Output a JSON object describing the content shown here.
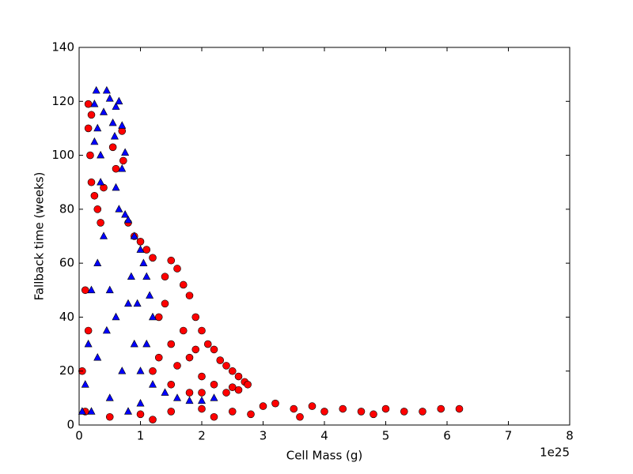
{
  "chart_data": {
    "type": "scatter",
    "xlabel": "Cell Mass (g)",
    "ylabel": "Fallback time (weeks)",
    "x_offset_label": "1e25",
    "xlim": [
      0,
      8
    ],
    "ylim": [
      0,
      140
    ],
    "xticks": [
      0,
      1,
      2,
      3,
      4,
      5,
      6,
      7,
      8
    ],
    "yticks": [
      0,
      20,
      40,
      60,
      80,
      100,
      120,
      140
    ],
    "series": [
      {
        "color": "#ff0000",
        "marker": "circle",
        "x": [
          0.5,
          1,
          1.5,
          2,
          2.5,
          3,
          3.2,
          3.5,
          3.8,
          4,
          4.3,
          4.6,
          5,
          5.3,
          5.6,
          5.9,
          6.2,
          2.8,
          3.6,
          4.8,
          1.2,
          2.2,
          1.2,
          1.3,
          1.4,
          1.5,
          1.6,
          1.7,
          1.8,
          1.9,
          2.0,
          2.1,
          2.2,
          2.3,
          2.4,
          2.5,
          2.6,
          2.7,
          2.75,
          1.5,
          1.6,
          1.8,
          2.0,
          2.2,
          2.4,
          1.7,
          1.9,
          1.4,
          1.3,
          2.5,
          1.5,
          1.8,
          2.0,
          2.6,
          0.15,
          0.2,
          0.15,
          0.18,
          0.2,
          0.25,
          0.3,
          0.35,
          0.4,
          0.55,
          0.7,
          0.6,
          0.72,
          0.8,
          0.9,
          1.0,
          1.1,
          1.2,
          0.1,
          0.05,
          0.1,
          0.15
        ],
        "values": [
          3,
          4,
          5,
          6,
          5,
          7,
          8,
          6,
          7,
          5,
          6,
          5,
          6,
          5,
          5,
          6,
          6,
          4,
          3,
          4,
          2,
          3,
          20,
          40,
          55,
          61,
          58,
          52,
          48,
          40,
          35,
          30,
          28,
          24,
          22,
          20,
          18,
          16,
          15,
          30,
          22,
          25,
          18,
          15,
          12,
          35,
          28,
          45,
          25,
          14,
          15,
          12,
          12,
          13,
          119,
          115,
          110,
          100,
          90,
          85,
          80,
          75,
          88,
          103,
          109,
          95,
          98,
          75,
          70,
          68,
          65,
          62,
          50,
          20,
          5,
          35
        ]
      },
      {
        "color": "#0000ff",
        "marker": "triangle",
        "x": [
          0.05,
          0.1,
          0.15,
          0.2,
          0.25,
          0.28,
          0.3,
          0.35,
          0.4,
          0.45,
          0.5,
          0.55,
          0.58,
          0.6,
          0.65,
          0.7,
          0.75,
          0.7,
          0.6,
          0.65,
          0.75,
          0.8,
          0.9,
          1.0,
          1.05,
          1.1,
          1.15,
          1.2,
          0.3,
          0.4,
          0.5,
          0.6,
          0.8,
          0.9,
          1.0,
          1.2,
          1.4,
          1.6,
          1.8,
          2.0,
          2.2,
          0.2,
          0.5,
          0.8,
          1.0,
          0.3,
          0.7,
          0.45,
          1.1,
          0.35,
          0.25,
          0.85,
          0.95
        ],
        "values": [
          5,
          15,
          30,
          50,
          119,
          124,
          110,
          90,
          116,
          124,
          121,
          112,
          107,
          118,
          120,
          111,
          101,
          95,
          88,
          80,
          78,
          76,
          70,
          65,
          60,
          55,
          48,
          40,
          60,
          70,
          50,
          40,
          45,
          30,
          20,
          15,
          12,
          10,
          9,
          9,
          10,
          5,
          10,
          5,
          8,
          25,
          20,
          35,
          30,
          100,
          105,
          55,
          45
        ]
      }
    ]
  }
}
